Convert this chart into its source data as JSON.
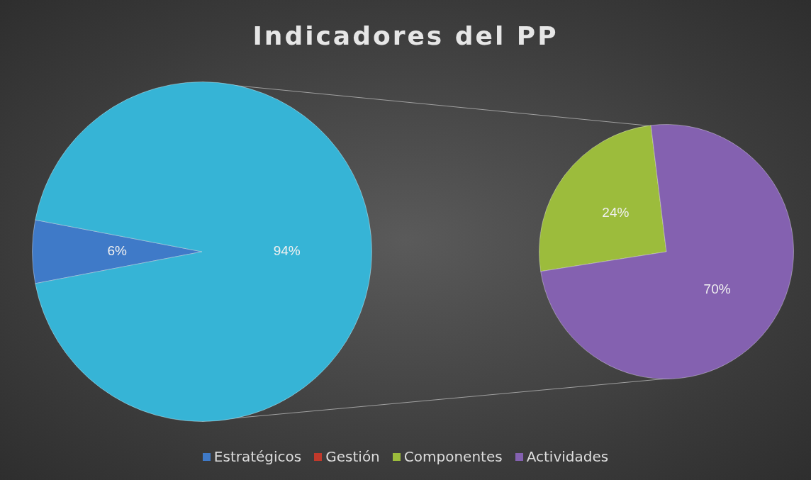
{
  "chart_data": [
    {
      "type": "pie",
      "title": "Indicadores del PP",
      "categories": [
        "Estratégicos",
        "Gestión",
        null
      ],
      "values": [
        6,
        0,
        94
      ],
      "colors": [
        "#3f7ac8",
        "#c0392b",
        "#36b4d6"
      ],
      "value_labels": [
        "6%",
        null,
        "94%"
      ],
      "legend": "bottom"
    },
    {
      "type": "pie",
      "categories": [
        "Componentes",
        "Actividades"
      ],
      "values": [
        24,
        70
      ],
      "colors": [
        "#9cbc3c",
        "#8461b0"
      ],
      "value_labels": [
        "24%",
        "70%"
      ],
      "legend": "bottom"
    }
  ]
}
